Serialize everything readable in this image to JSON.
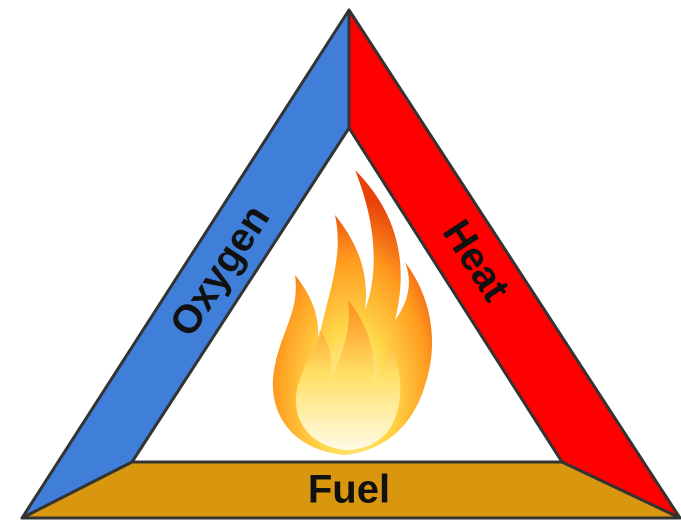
{
  "sides": [
    {
      "label": "Oxygen"
    },
    {
      "label": "Heat"
    },
    {
      "label": "Fuel"
    }
  ]
}
